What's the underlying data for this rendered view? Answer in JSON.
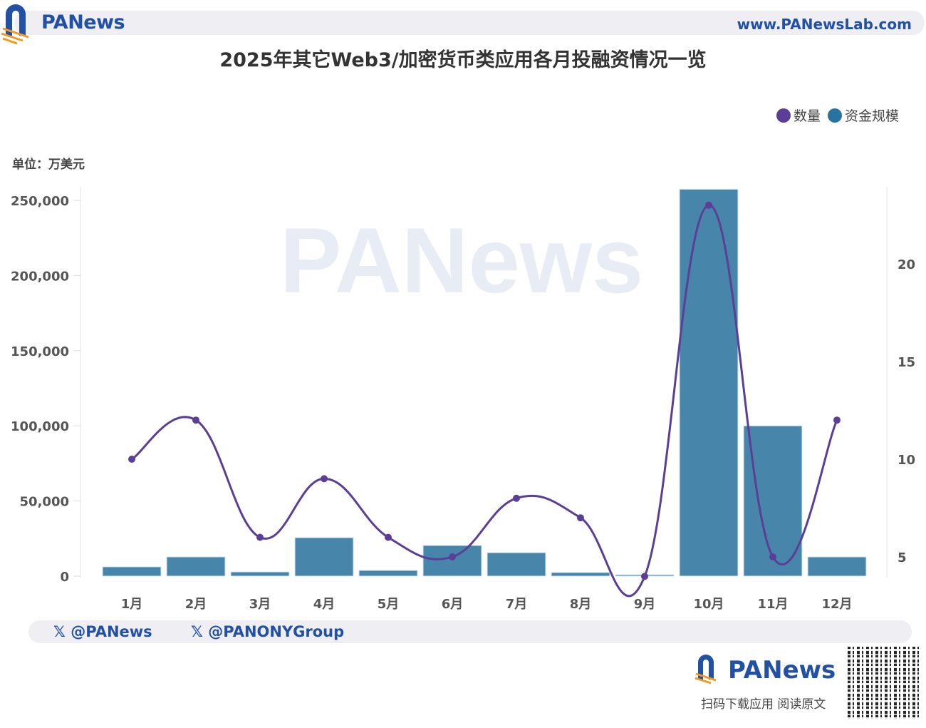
{
  "header": {
    "brand": "PANews",
    "site": "www.PANewsLab.com"
  },
  "chart_data": {
    "type": "bar+line",
    "title": "2025年其它Web3/加密货币类应用各月投融资情况一览",
    "unit_label": "单位：万美元",
    "categories": [
      "1月",
      "2月",
      "3月",
      "4月",
      "5月",
      "6月",
      "7月",
      "8月",
      "9月",
      "10月",
      "11月",
      "12月"
    ],
    "series": [
      {
        "name": "资金规模",
        "type": "bar",
        "axis": "left",
        "color": "#4786aa",
        "values": [
          6200,
          12800,
          2800,
          25600,
          3800,
          20400,
          15600,
          2400,
          900,
          257400,
          100000,
          12800
        ]
      },
      {
        "name": "数量",
        "type": "line",
        "axis": "right",
        "color": "#5b3e95",
        "values": [
          10,
          12,
          6,
          9,
          6,
          5,
          8,
          7,
          4,
          23,
          5,
          12
        ]
      }
    ],
    "left_axis": {
      "ylim": [
        0,
        250000
      ],
      "ticks": [
        "0",
        "50,000",
        "100,000",
        "150,000",
        "200,000",
        "250,000"
      ],
      "tick_values": [
        0,
        50000,
        100000,
        150000,
        200000,
        250000
      ]
    },
    "right_axis": {
      "ticks": [
        "5",
        "10",
        "15",
        "20"
      ],
      "tick_values": [
        5,
        10,
        15,
        20
      ]
    },
    "legend": {
      "placement": "top-right",
      "entries": [
        "数量",
        "资金规模"
      ]
    },
    "grid": false
  },
  "footer": {
    "handles": [
      "@PANews",
      "@PANONYGroup"
    ],
    "brand": "PANews",
    "subtitle": "扫码下载应用  阅读原文"
  },
  "watermark": "PANews"
}
